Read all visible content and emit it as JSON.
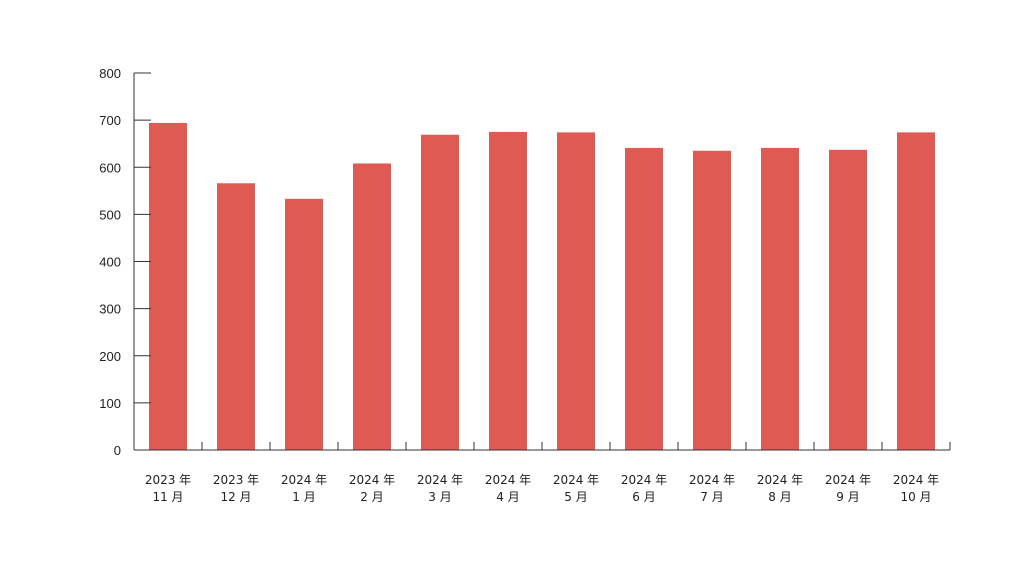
{
  "chart_data": {
    "type": "bar",
    "categories": [
      [
        "2023 年",
        "11 月"
      ],
      [
        "2023 年",
        "12 月"
      ],
      [
        "2024 年",
        "1 月"
      ],
      [
        "2024 年",
        "2 月"
      ],
      [
        "2024 年",
        "3 月"
      ],
      [
        "2024 年",
        "4 月"
      ],
      [
        "2024 年",
        "5 月"
      ],
      [
        "2024 年",
        "6 月"
      ],
      [
        "2024 年",
        "7 月"
      ],
      [
        "2024 年",
        "8 月"
      ],
      [
        "2024 年",
        "9 月"
      ],
      [
        "2024 年",
        "10 月"
      ]
    ],
    "values": [
      694,
      566,
      533,
      608,
      669,
      675,
      674,
      641,
      635,
      641,
      637,
      674
    ],
    "title": "",
    "xlabel": "",
    "ylabel": "",
    "ylim": [
      0,
      800
    ],
    "yticks": [
      "0",
      "100",
      "200",
      "300",
      "400",
      "500",
      "600",
      "700",
      "800"
    ],
    "grid": false,
    "bar_color": "#de5a53",
    "axis_color": "#333333"
  }
}
